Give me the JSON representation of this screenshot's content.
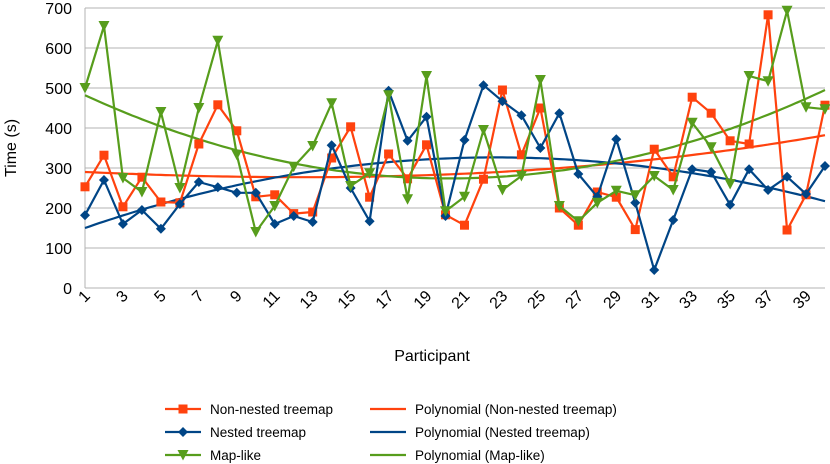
{
  "chart_data": {
    "type": "line",
    "title": "",
    "xlabel": "Participant",
    "ylabel": "Time (s)",
    "ylim": [
      0,
      700
    ],
    "yticks": [
      0,
      100,
      200,
      300,
      400,
      500,
      600,
      700
    ],
    "xlim": [
      1,
      40
    ],
    "xtick_labels": [
      "1",
      "3",
      "5",
      "7",
      "9",
      "11",
      "13",
      "15",
      "17",
      "19",
      "21",
      "23",
      "25",
      "27",
      "29",
      "31",
      "33",
      "35",
      "37",
      "39"
    ],
    "grid": "horizontal",
    "legend_position": "bottom",
    "x": [
      1,
      2,
      3,
      4,
      5,
      6,
      7,
      8,
      9,
      10,
      11,
      12,
      13,
      14,
      15,
      16,
      17,
      18,
      19,
      20,
      21,
      22,
      23,
      24,
      25,
      26,
      27,
      28,
      29,
      30,
      31,
      32,
      33,
      34,
      35,
      36,
      37,
      38,
      39,
      40
    ],
    "series": [
      {
        "name": "Non-nested treemap",
        "color": "#ff420e",
        "marker": "square",
        "values": [
          253,
          332,
          203,
          277,
          215,
          213,
          360,
          458,
          393,
          228,
          233,
          186,
          190,
          325,
          403,
          227,
          335,
          273,
          358,
          183,
          157,
          272,
          495,
          333,
          450,
          200,
          157,
          240,
          227,
          146,
          347,
          278,
          477,
          437,
          368,
          360,
          683,
          145,
          233,
          457
        ]
      },
      {
        "name": "Nested treemap",
        "color": "#004586",
        "marker": "diamond",
        "values": [
          182,
          270,
          160,
          195,
          148,
          210,
          265,
          252,
          238,
          238,
          160,
          180,
          165,
          357,
          250,
          167,
          493,
          368,
          428,
          180,
          370,
          507,
          467,
          432,
          350,
          437,
          285,
          228,
          372,
          213,
          45,
          170,
          297,
          290,
          208,
          297,
          245,
          278,
          235,
          305
        ]
      },
      {
        "name": "Map-like",
        "color": "#579d1c",
        "marker": "triangle-down",
        "values": [
          500,
          655,
          275,
          240,
          440,
          250,
          450,
          618,
          333,
          140,
          205,
          303,
          355,
          462,
          255,
          287,
          482,
          222,
          530,
          192,
          228,
          395,
          245,
          280,
          520,
          205,
          167,
          213,
          243,
          232,
          280,
          245,
          413,
          352,
          260,
          530,
          517,
          693,
          452,
          447
        ]
      }
    ],
    "trendlines": [
      {
        "name": "Polynomial (Non-nested treemap)",
        "color": "#ff420e",
        "order": 2,
        "endpoints": {
          "start": 290,
          "min_x": 15,
          "min_y": 275,
          "end": 382
        }
      },
      {
        "name": "Polynomial (Nested treemap)",
        "color": "#004586",
        "order": 2,
        "endpoints": {
          "start": 150,
          "peak_x": 22,
          "peak_y": 323,
          "end": 217
        }
      },
      {
        "name": "Polynomial (Map-like)",
        "color": "#579d1c",
        "order": 2,
        "endpoints": {
          "start": 482,
          "min_x": 20,
          "min_y": 275,
          "end": 495
        }
      }
    ],
    "legend": [
      {
        "label": "Non-nested treemap",
        "series": 0,
        "kind": "data"
      },
      {
        "label": "Polynomial (Non-nested treemap)",
        "series": 0,
        "kind": "trend"
      },
      {
        "label": "Nested treemap",
        "series": 1,
        "kind": "data"
      },
      {
        "label": "Polynomial (Nested treemap)",
        "series": 1,
        "kind": "trend"
      },
      {
        "label": "Map-like",
        "series": 2,
        "kind": "data"
      },
      {
        "label": "Polynomial (Map-like)",
        "series": 2,
        "kind": "trend"
      }
    ]
  }
}
